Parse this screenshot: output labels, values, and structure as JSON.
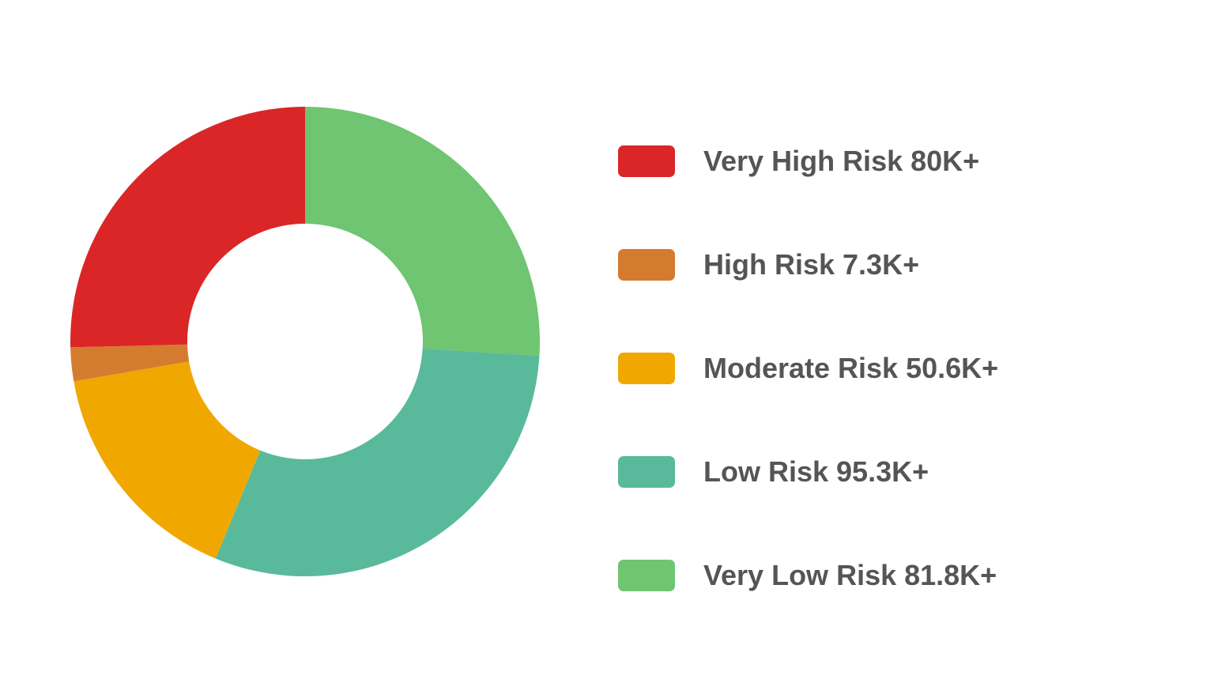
{
  "chart_data": {
    "type": "pie",
    "variant": "donut",
    "legend_position": "right",
    "slices": [
      {
        "label": "Very Low Risk 81.8K+",
        "value": 81.8,
        "color": "#6fc571"
      },
      {
        "label": "Low Risk 95.3K+",
        "value": 95.3,
        "color": "#59b99b"
      },
      {
        "label": "Moderate Risk 50.6K+",
        "value": 50.6,
        "color": "#f0a800"
      },
      {
        "label": "High Risk 7.3K+",
        "value": 7.3,
        "color": "#d57b30"
      },
      {
        "label": "Very High Risk 80K+",
        "value": 80,
        "color": "#da2627"
      }
    ],
    "legend": [
      {
        "label": "Very High Risk 80K+",
        "color": "#da2627"
      },
      {
        "label": "High Risk 7.3K+",
        "color": "#d57b30"
      },
      {
        "label": "Moderate Risk 50.6K+",
        "color": "#f0a800"
      },
      {
        "label": "Low Risk 95.3K+",
        "color": "#59b99b"
      },
      {
        "label": "Very Low Risk 81.8K+",
        "color": "#6fc571"
      }
    ]
  }
}
